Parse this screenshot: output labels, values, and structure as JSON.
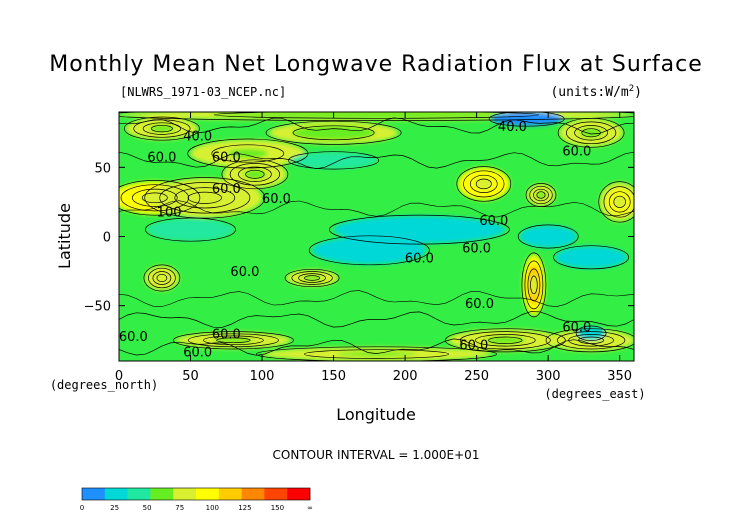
{
  "chart_data": {
    "type": "heatmap",
    "title": "Monthly Mean Net Longwave Radiation Flux at Surface",
    "source_file": "[NLWRS_1971-03_NCEP.nc]",
    "units": "(units:W/m^2)",
    "xlabel": "Longitude",
    "ylabel": "Latitude",
    "x_unit_label": "(degrees_east)",
    "y_unit_label": "(degrees_north)",
    "xlim": [
      0,
      360
    ],
    "ylim": [
      -90,
      90
    ],
    "x_ticks": [
      0,
      50,
      100,
      150,
      200,
      250,
      300,
      350
    ],
    "x_tick_labels": [
      "0",
      "50",
      "100",
      "150",
      "200",
      "250",
      "300",
      "350"
    ],
    "y_ticks": [
      50,
      0,
      -50
    ],
    "y_tick_labels": [
      "50",
      "0",
      "−50"
    ],
    "contour_interval": "CONTOUR INTERVAL = 1.000E+01",
    "contour_labels": [
      {
        "text": "40.0",
        "lon": 275,
        "lat": 80
      },
      {
        "text": "40.0",
        "lon": 55,
        "lat": 73
      },
      {
        "text": "60.0",
        "lon": 30,
        "lat": 58
      },
      {
        "text": "60.0",
        "lon": 75,
        "lat": 58
      },
      {
        "text": "60.0",
        "lon": 320,
        "lat": 62
      },
      {
        "text": "60.0",
        "lon": 75,
        "lat": 35
      },
      {
        "text": "60.0",
        "lon": 110,
        "lat": 28
      },
      {
        "text": "100",
        "lon": 35,
        "lat": 18
      },
      {
        "text": "60.0",
        "lon": 262,
        "lat": 12
      },
      {
        "text": "60.0",
        "lon": 250,
        "lat": -8
      },
      {
        "text": "60.0",
        "lon": 210,
        "lat": -15
      },
      {
        "text": "60.0",
        "lon": 88,
        "lat": -25
      },
      {
        "text": "60.0",
        "lon": 252,
        "lat": -48
      },
      {
        "text": "60.0",
        "lon": 320,
        "lat": -65
      },
      {
        "text": "60.0",
        "lon": 75,
        "lat": -70
      },
      {
        "text": "60.0",
        "lon": 248,
        "lat": -78
      },
      {
        "text": "60.0",
        "lon": 10,
        "lat": -72
      },
      {
        "text": "60.0",
        "lon": 55,
        "lat": -83
      }
    ],
    "blobs": [
      {
        "lon": 25,
        "lat": 28,
        "rx": 30,
        "ry": 12,
        "v": 150
      },
      {
        "lon": 60,
        "lat": 28,
        "rx": 40,
        "ry": 14,
        "v": 120
      },
      {
        "lon": 95,
        "lat": 45,
        "rx": 22,
        "ry": 10,
        "v": 110
      },
      {
        "lon": 90,
        "lat": 60,
        "rx": 40,
        "ry": 10,
        "v": 95
      },
      {
        "lon": 150,
        "lat": 75,
        "rx": 45,
        "ry": 8,
        "v": 85
      },
      {
        "lon": 30,
        "lat": 78,
        "rx": 25,
        "ry": 8,
        "v": 105
      },
      {
        "lon": 255,
        "lat": 38,
        "rx": 18,
        "ry": 12,
        "v": 150
      },
      {
        "lon": 295,
        "lat": 30,
        "rx": 10,
        "ry": 8,
        "v": 105
      },
      {
        "lon": 350,
        "lat": 25,
        "rx": 14,
        "ry": 14,
        "v": 140
      },
      {
        "lon": 330,
        "lat": 75,
        "rx": 22,
        "ry": 10,
        "v": 115
      },
      {
        "lon": 290,
        "lat": -35,
        "rx": 8,
        "ry": 22,
        "v": 160
      },
      {
        "lon": 30,
        "lat": -30,
        "rx": 12,
        "ry": 9,
        "v": 120
      },
      {
        "lon": 135,
        "lat": -30,
        "rx": 18,
        "ry": 6,
        "v": 110
      },
      {
        "lon": 270,
        "lat": -75,
        "rx": 40,
        "ry": 8,
        "v": 110
      },
      {
        "lon": 80,
        "lat": -75,
        "rx": 40,
        "ry": 6,
        "v": 105
      },
      {
        "lon": 330,
        "lat": -75,
        "rx": 30,
        "ry": 8,
        "v": 120
      },
      {
        "lon": 180,
        "lat": -85,
        "rx": 80,
        "ry": 5,
        "v": 95
      },
      {
        "lon": 180,
        "lat": 88,
        "rx": 180,
        "ry": 4,
        "v": 90
      },
      {
        "lon": 210,
        "lat": 5,
        "rx": 60,
        "ry": 10,
        "v": 38
      },
      {
        "lon": 175,
        "lat": -10,
        "rx": 40,
        "ry": 10,
        "v": 35
      },
      {
        "lon": 300,
        "lat": 0,
        "rx": 20,
        "ry": 8,
        "v": 30
      },
      {
        "lon": 330,
        "lat": -15,
        "rx": 25,
        "ry": 8,
        "v": 38
      },
      {
        "lon": 50,
        "lat": 5,
        "rx": 30,
        "ry": 8,
        "v": 40
      },
      {
        "lon": 285,
        "lat": 85,
        "rx": 25,
        "ry": 5,
        "v": 15
      },
      {
        "lon": 330,
        "lat": -70,
        "rx": 10,
        "ry": 5,
        "v": 20
      },
      {
        "lon": 150,
        "lat": 55,
        "rx": 30,
        "ry": 6,
        "v": 45
      }
    ],
    "colorbar": {
      "colors": [
        "#1e90ff",
        "#00d8d8",
        "#20e8a0",
        "#66ee22",
        "#d8f030",
        "#ffff00",
        "#ffcc00",
        "#ff8800",
        "#ff4400",
        "#ff0000"
      ],
      "ticks": [
        "0",
        "25",
        "50",
        "75",
        "100",
        "125",
        "150",
        "∞"
      ]
    }
  }
}
